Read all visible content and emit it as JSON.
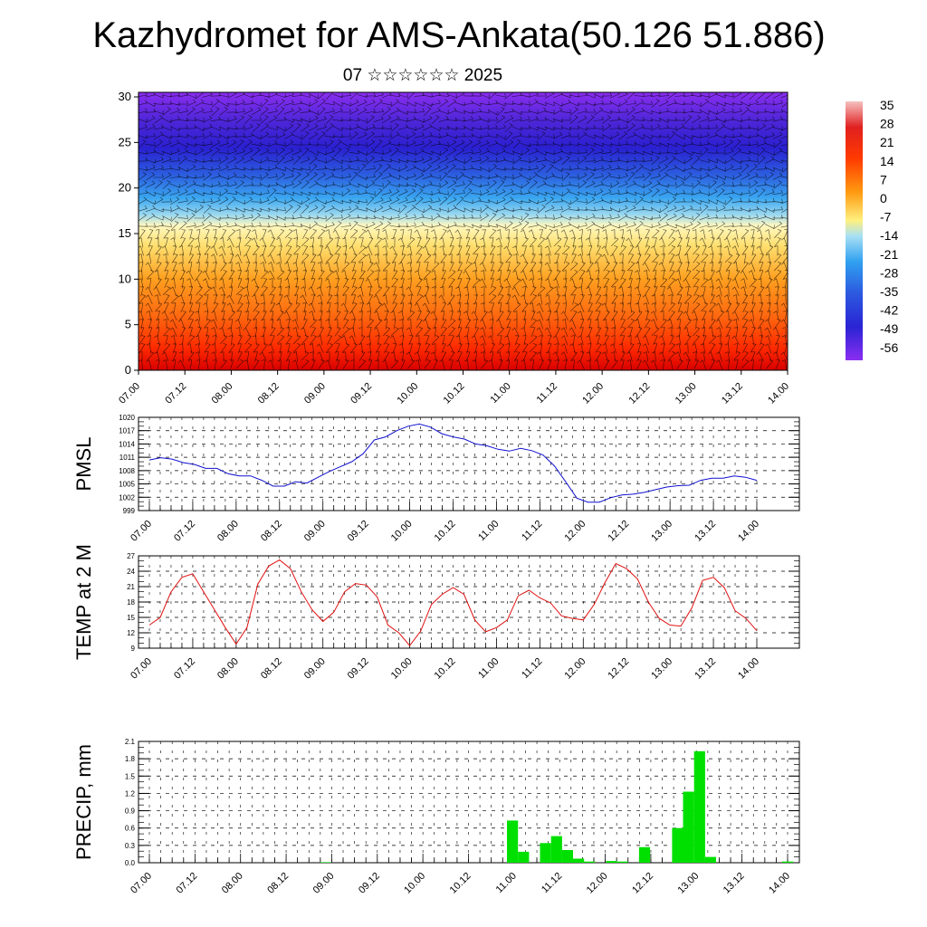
{
  "title": "Kazhydromet for AMS-Ankata(50.126 51.886)",
  "subtitle": "07 ☆☆☆☆☆☆ 2025",
  "chart_data": [
    {
      "type": "heatmap",
      "title": "",
      "x_ticks": [
        "07.00",
        "07.12",
        "08.00",
        "08.12",
        "09.00",
        "09.12",
        "10.00",
        "10.12",
        "11.00",
        "11.12",
        "12.00",
        "12.12",
        "13.00",
        "13.12",
        "14.00"
      ],
      "y_ticks": [
        "0",
        "5",
        "10",
        "15",
        "20",
        "25",
        "30"
      ],
      "ylim": [
        0,
        30.5
      ],
      "colorbar": {
        "labels": [
          "35",
          "28",
          "21",
          "14",
          "7",
          "0",
          "-7",
          "-14",
          "-21",
          "-28",
          "-35",
          "-42",
          "-49",
          "-56"
        ],
        "stops": [
          "#f2b0b0",
          "#e83030",
          "#d00000",
          "#ff3000",
          "#ff6a00",
          "#ff9c20",
          "#ffcc40",
          "#fff6a0",
          "#9ad8f0",
          "#30a8f0",
          "#3070e8",
          "#2c2cd8",
          "#5a2ae0",
          "#8a2ef0"
        ]
      },
      "barbs": "wind-barbs",
      "colormap_desc": "temperature by height"
    },
    {
      "type": "line",
      "ylabel": "PMSL",
      "ylim": [
        999,
        1020
      ],
      "y_ticks": [
        "1020",
        "1017",
        "1014",
        "1011",
        "1008",
        "1005",
        "1002",
        "999"
      ],
      "x_ticks": [
        "07.00",
        "07.12",
        "08.00",
        "08.12",
        "09.00",
        "09.12",
        "10.00",
        "10.12",
        "11.00",
        "11.12",
        "12.00",
        "12.12",
        "13.00",
        "13.12",
        "14.00"
      ],
      "color": "#1010d0",
      "values": [
        1010.4,
        1010.9,
        1010.6,
        1009.8,
        1009.4,
        1008.5,
        1008.5,
        1007.3,
        1006.8,
        1006.8,
        1005.8,
        1004.5,
        1004.5,
        1005.5,
        1005.2,
        1006.5,
        1007.8,
        1008.9,
        1010.0,
        1011.8,
        1014.9,
        1015.6,
        1017.0,
        1018.0,
        1018.5,
        1017.8,
        1016.3,
        1015.6,
        1015.1,
        1014.0,
        1013.6,
        1012.8,
        1012.4,
        1013.0,
        1012.5,
        1011.5,
        1009.1,
        1005.5,
        1001.8,
        1000.9,
        1000.9,
        1001.9,
        1002.5,
        1002.7,
        1003.1,
        1003.7,
        1004.3,
        1004.6,
        1004.7,
        1005.8,
        1006.3,
        1006.3,
        1006.8,
        1006.5,
        1005.8
      ]
    },
    {
      "type": "line",
      "ylabel": "TEMP at 2 M",
      "ylim": [
        9,
        27
      ],
      "y_ticks": [
        "27",
        "24",
        "21",
        "18",
        "15",
        "12",
        "9"
      ],
      "x_ticks": [
        "07.00",
        "07.12",
        "08.00",
        "08.12",
        "09.00",
        "09.12",
        "10.00",
        "10.12",
        "11.00",
        "11.12",
        "12.00",
        "12.12",
        "13.00",
        "13.12",
        "14.00"
      ],
      "color": "#e01010",
      "values": [
        13.5,
        15.0,
        20.0,
        22.8,
        23.5,
        20.0,
        16.5,
        13.0,
        9.8,
        13.0,
        21.5,
        25.0,
        26.2,
        24.5,
        20.0,
        16.5,
        14.2,
        16.0,
        20.0,
        21.6,
        21.3,
        19.0,
        13.5,
        12.0,
        9.5,
        12.3,
        17.5,
        19.5,
        20.8,
        19.5,
        14.5,
        12.2,
        13.0,
        14.5,
        19.2,
        20.3,
        18.8,
        17.8,
        15.3,
        14.8,
        14.5,
        17.5,
        21.8,
        25.5,
        24.5,
        22.5,
        18.0,
        14.8,
        13.5,
        13.3,
        16.8,
        22.2,
        22.8,
        20.8,
        16.3,
        14.8,
        12.4
      ]
    },
    {
      "type": "bar",
      "ylabel": "PRECIP, mm",
      "ylim": [
        0,
        2.1
      ],
      "y_ticks": [
        "2.1",
        "1.8",
        "1.5",
        "1.2",
        "0.9",
        "0.6",
        "0.3",
        "0.0"
      ],
      "x_ticks": [
        "07.00",
        "07.12",
        "08.00",
        "08.12",
        "09.00",
        "09.12",
        "10.00",
        "10.12",
        "11.00",
        "11.12",
        "12.00",
        "12.12",
        "13.00",
        "13.12",
        "14.00"
      ],
      "color": "#00e000",
      "values": [
        0,
        0,
        0,
        0,
        0,
        0,
        0,
        0,
        0,
        0,
        0,
        0,
        0,
        0,
        0,
        0,
        0.01,
        0,
        0,
        0,
        0,
        0,
        0,
        0,
        0,
        0,
        0,
        0,
        0,
        0,
        0,
        0,
        0,
        0.73,
        0.19,
        0,
        0.34,
        0.46,
        0.22,
        0.07,
        0.02,
        0,
        0.03,
        0.02,
        0,
        0.27,
        0,
        0,
        0.6,
        1.23,
        1.93,
        0.1,
        0,
        0,
        0,
        0,
        0,
        0,
        0.02
      ]
    }
  ]
}
